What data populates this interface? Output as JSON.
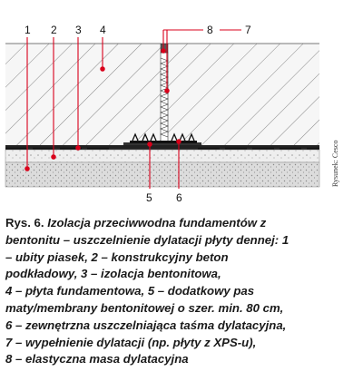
{
  "figure": {
    "labels": {
      "l1": "1",
      "l2": "2",
      "l3": "3",
      "l4": "4",
      "l5": "5",
      "l6": "6",
      "l7": "7",
      "l8": "8"
    },
    "credit": "Rysunek: Cesco",
    "colors": {
      "accent": "#d9001b",
      "hatch": "#555555",
      "sand": "#d8d8d8",
      "membrane": "#111111"
    }
  },
  "caption": {
    "label": "Rys. 6.",
    "lines": [
      "Izolacja przeciwwodna fundamentów z",
      "bentonitu – uszczelnienie dylatacji płyty dennej: 1",
      "– ubity piasek, 2 – konstrukcyjny beton",
      "podkładowy, 3 – izolacja bentonitowa,",
      "4 – płyta fundamentowa, 5 – dodatkowy pas",
      "maty/membrany bentonitowej o szer. min. 80 cm,",
      "6 – zewnętrzna uszczelniająca taśma dylatacyjna,",
      "7 – wypełnienie dylatacji (np. płyty z XPS-u),",
      "8 – elastyczna masa dylatacyjna"
    ]
  }
}
